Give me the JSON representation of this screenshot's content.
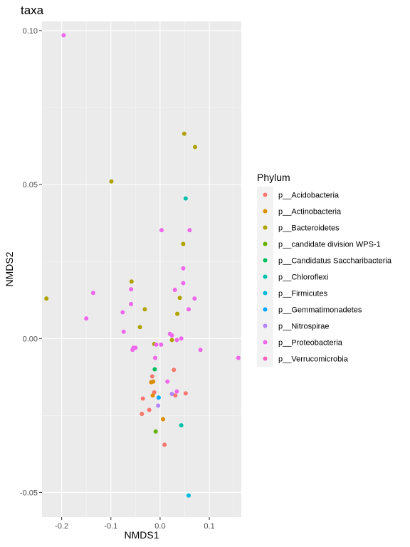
{
  "chart_data": {
    "type": "scatter",
    "title": "taxa",
    "xlabel": "NMDS1",
    "ylabel": "NMDS2",
    "xlim": [
      -0.24,
      0.165
    ],
    "ylim": [
      -0.058,
      0.103
    ],
    "x_ticks": [
      -0.2,
      -0.1,
      0.0,
      0.1
    ],
    "x_tick_labels": [
      "-0.2",
      "-0.1",
      "0.0",
      "0.1"
    ],
    "y_ticks": [
      -0.05,
      0.0,
      0.05,
      0.1
    ],
    "y_tick_labels": [
      "-0.05",
      "0.00",
      "0.05",
      "0.10"
    ],
    "grid": true,
    "background": "#ebebeb",
    "legend": {
      "title": "Phylum",
      "placement": "right"
    },
    "series": [
      {
        "name": "p__Acidobacteria",
        "color": "#F8766D",
        "points": [
          [
            -0.016,
            -0.0123
          ],
          [
            0.028,
            -0.0102
          ],
          [
            -0.012,
            -0.0175
          ],
          [
            0.031,
            -0.0185
          ],
          [
            0.052,
            -0.0178
          ],
          [
            -0.035,
            -0.0195
          ],
          [
            -0.022,
            -0.0232
          ],
          [
            -0.037,
            -0.0245
          ],
          [
            0.009,
            -0.0345
          ]
        ]
      },
      {
        "name": "p__Actinobacteria",
        "color": "#DB8E00",
        "points": [
          [
            -0.014,
            -0.014
          ],
          [
            -0.018,
            -0.0142
          ],
          [
            -0.015,
            -0.0185
          ],
          [
            0.006,
            -0.0262
          ]
        ]
      },
      {
        "name": "p__Bacteroidetes",
        "color": "#AEA200",
        "points": [
          [
            0.049,
            0.0665
          ],
          [
            0.071,
            0.0622
          ],
          [
            -0.099,
            0.051
          ],
          [
            0.047,
            0.0307
          ],
          [
            -0.058,
            0.0185
          ],
          [
            0.04,
            0.0132
          ],
          [
            -0.231,
            0.013
          ],
          [
            -0.031,
            0.0095
          ],
          [
            0.035,
            0.008
          ],
          [
            -0.041,
            0.0037
          ],
          [
            0.024,
            -0.0005
          ],
          [
            -0.012,
            -0.0018
          ]
        ]
      },
      {
        "name": "p__candidate division WPS-1",
        "color": "#64B200",
        "points": [
          [
            -0.009,
            -0.0302
          ]
        ]
      },
      {
        "name": "p__Candidatus Saccharibacteria",
        "color": "#00BD5C",
        "points": [
          [
            -0.011,
            -0.01
          ]
        ]
      },
      {
        "name": "p__Chloroflexi",
        "color": "#00C1A7",
        "points": [
          [
            0.052,
            0.0455
          ],
          [
            0.043,
            -0.0282
          ]
        ]
      },
      {
        "name": "p__Firmicutes",
        "color": "#00BADE",
        "points": [
          [
            0.058,
            -0.051
          ]
        ]
      },
      {
        "name": "p__Gemmatimonadetes",
        "color": "#00A6FF",
        "points": [
          [
            -0.003,
            -0.0192
          ]
        ]
      },
      {
        "name": "p__Nitrospirae",
        "color": "#B385FF",
        "points": [
          [
            -0.004,
            -0.0218
          ],
          [
            0.024,
            -0.018
          ]
        ]
      },
      {
        "name": "p__Proteobacteria",
        "color": "#EF67EB",
        "points": [
          [
            -0.196,
            0.0985
          ],
          [
            0.003,
            0.0352
          ],
          [
            0.06,
            0.0352
          ],
          [
            0.047,
            0.0228
          ],
          [
            -0.059,
            0.016
          ],
          [
            0.047,
            0.018
          ],
          [
            -0.136,
            0.0148
          ],
          [
            0.03,
            0.0158
          ],
          [
            0.07,
            0.013
          ],
          [
            -0.059,
            0.0112
          ],
          [
            0.058,
            0.0095
          ],
          [
            -0.076,
            0.0085
          ],
          [
            -0.15,
            0.0065
          ],
          [
            -0.074,
            0.0022
          ],
          [
            0.02,
            0.0015
          ],
          [
            0.024,
            0.001
          ],
          [
            0.034,
            -0.0005
          ],
          [
            0.043,
            0.0
          ],
          [
            -0.008,
            -0.002
          ],
          [
            0.002,
            -0.002
          ],
          [
            -0.05,
            -0.003
          ],
          [
            -0.054,
            -0.003
          ],
          [
            -0.056,
            -0.0037
          ],
          [
            0.082,
            -0.0037
          ],
          [
            -0.01,
            -0.0063
          ],
          [
            0.159,
            -0.0063
          ],
          [
            0.015,
            -0.014
          ],
          [
            0.034,
            -0.0172
          ]
        ]
      },
      {
        "name": "p__Verrucomicrobia",
        "color": "#FF62BC",
        "points": []
      }
    ]
  }
}
